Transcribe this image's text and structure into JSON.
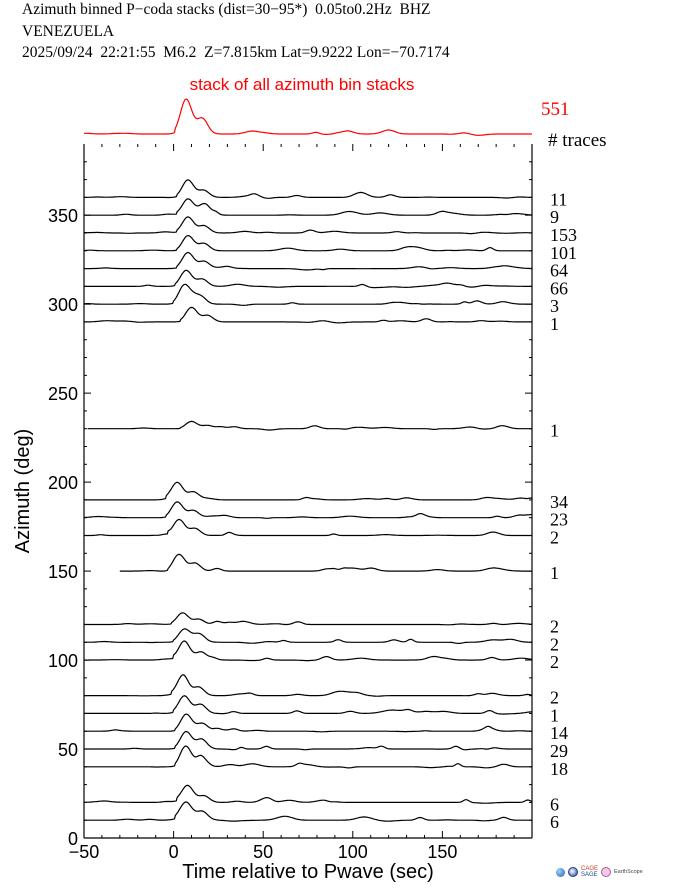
{
  "header": {
    "line1": "Azimuth binned P−coda stacks (dist=30−95*)  0.05to0.2Hz  BHZ",
    "line2": "VENEZUELA",
    "line3": "2025/09/24  22:21:55  M6.2  Z=7.815km Lat=9.9222 Lon=−70.7174"
  },
  "colors": {
    "accent": "#ff0000",
    "trace": "#000000"
  },
  "logos": {
    "cage": "CAGE",
    "sage": "SAGE",
    "earthscope": "EarthScope"
  },
  "chart_data": {
    "type": "line",
    "title": "stack of all azimuth bin stacks",
    "xlabel": "Time relative to Pwave (sec)",
    "ylabel": "Azimuth (deg)",
    "xlim": [
      -50,
      200
    ],
    "ylim": [
      0,
      390
    ],
    "xticks": [
      -50,
      0,
      50,
      100,
      150
    ],
    "xtick_labels": [
      "−50",
      "0",
      "50",
      "100",
      "150"
    ],
    "yticks": [
      0,
      50,
      100,
      150,
      200,
      250,
      300,
      350
    ],
    "yticks_labels": [
      "0",
      "50",
      "100",
      "150",
      "200",
      "250",
      "300",
      "350"
    ],
    "grid": false,
    "stack_summary": {
      "count": "551",
      "count_label": "# traces",
      "color": "#ff0000"
    },
    "series": [
      {
        "azimuth": 360,
        "count": "11",
        "start": -50,
        "peak_t": 8,
        "peak_amp": 12
      },
      {
        "azimuth": 350,
        "count": "9",
        "start": -50,
        "peak_t": 8,
        "peak_amp": 12
      },
      {
        "azimuth": 340,
        "count": "153",
        "start": -50,
        "peak_t": 8,
        "peak_amp": 11
      },
      {
        "azimuth": 330,
        "count": "101",
        "start": -50,
        "peak_t": 8,
        "peak_amp": 11
      },
      {
        "azimuth": 320,
        "count": "64",
        "start": -50,
        "peak_t": 8,
        "peak_amp": 11
      },
      {
        "azimuth": 310,
        "count": "66",
        "start": -50,
        "peak_t": 7,
        "peak_amp": 11
      },
      {
        "azimuth": 300,
        "count": "3",
        "start": -50,
        "peak_t": 6,
        "peak_amp": 12
      },
      {
        "azimuth": 290,
        "count": "1",
        "start": -50,
        "peak_t": 10,
        "peak_amp": 10
      },
      {
        "azimuth": 230,
        "count": "1",
        "start": -48,
        "peak_t": 10,
        "peak_amp": 5
      },
      {
        "azimuth": 190,
        "count": "34",
        "start": -50,
        "peak_t": 2,
        "peak_amp": 12
      },
      {
        "azimuth": 180,
        "count": "23",
        "start": -50,
        "peak_t": 2,
        "peak_amp": 11
      },
      {
        "azimuth": 170,
        "count": "2",
        "start": -50,
        "peak_t": 3,
        "peak_amp": 11
      },
      {
        "azimuth": 150,
        "count": "1",
        "start": -30,
        "peak_t": 3,
        "peak_amp": 12
      },
      {
        "azimuth": 120,
        "count": "2",
        "start": -50,
        "peak_t": 5,
        "peak_amp": 8
      },
      {
        "azimuth": 110,
        "count": "2",
        "start": -50,
        "peak_t": 6,
        "peak_amp": 9
      },
      {
        "azimuth": 100,
        "count": "2",
        "start": -50,
        "peak_t": 6,
        "peak_amp": 11
      },
      {
        "azimuth": 80,
        "count": "2",
        "start": -50,
        "peak_t": 5,
        "peak_amp": 13
      },
      {
        "azimuth": 70,
        "count": "1",
        "start": -50,
        "peak_t": 6,
        "peak_amp": 12
      },
      {
        "azimuth": 60,
        "count": "14",
        "start": -50,
        "peak_t": 7,
        "peak_amp": 12
      },
      {
        "azimuth": 50,
        "count": "29",
        "start": -50,
        "peak_t": 7,
        "peak_amp": 12
      },
      {
        "azimuth": 40,
        "count": "18",
        "start": -50,
        "peak_t": 7,
        "peak_amp": 13
      },
      {
        "azimuth": 20,
        "count": "6",
        "start": -50,
        "peak_t": 8,
        "peak_amp": 10
      },
      {
        "azimuth": 10,
        "count": "6",
        "start": -50,
        "peak_t": 7,
        "peak_amp": 11
      }
    ]
  }
}
